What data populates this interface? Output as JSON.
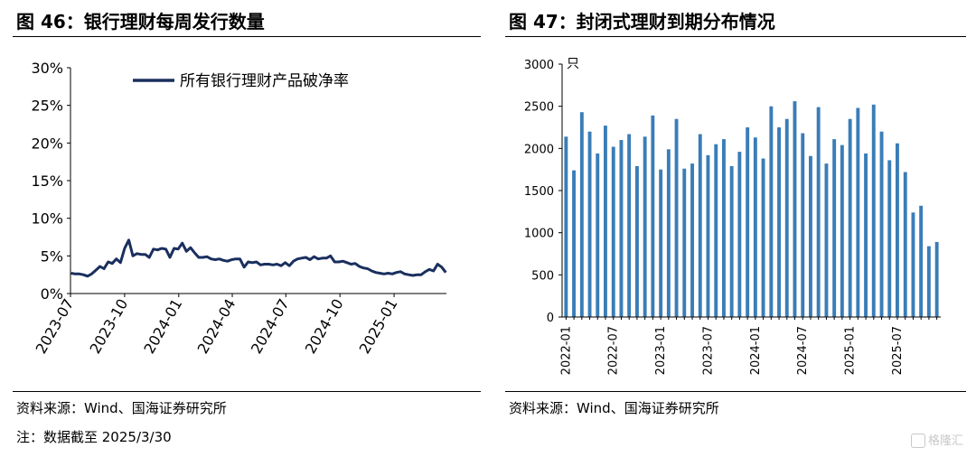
{
  "left_figure": {
    "title": "图 46：银行理财每周发行数量",
    "source": "资料来源：Wind、国海证券研究所",
    "note": "注：数据截至 2025/3/30"
  },
  "right_figure": {
    "title": "图 47：封闭式理财到期分布情况",
    "source": "资料来源：Wind、国海证券研究所"
  },
  "watermark": "格隆汇",
  "colors": {
    "line": "#1a2f5e",
    "bar": "#3a7db8",
    "axis": "#000000"
  },
  "chart_data": [
    {
      "type": "line",
      "ylim": [
        0,
        30
      ],
      "y_ticks": [
        "0%",
        "5%",
        "10%",
        "15%",
        "20%",
        "25%",
        "30%"
      ],
      "x_ticks": [
        "2023-07",
        "2023-10",
        "2024-01",
        "2024-04",
        "2024-07",
        "2024-10",
        "2025-01"
      ],
      "grid": false,
      "legend_position": "top",
      "series": [
        {
          "name": "所有银行理财产品破净率",
          "x": [
            "2023-07-02",
            "2023-07-09",
            "2023-07-16",
            "2023-07-23",
            "2023-07-30",
            "2023-08-06",
            "2023-08-13",
            "2023-08-20",
            "2023-08-27",
            "2023-09-03",
            "2023-09-10",
            "2023-09-17",
            "2023-09-24",
            "2023-10-01",
            "2023-10-08",
            "2023-10-15",
            "2023-10-22",
            "2023-10-29",
            "2023-11-05",
            "2023-11-12",
            "2023-11-19",
            "2023-11-26",
            "2023-12-03",
            "2023-12-10",
            "2023-12-17",
            "2023-12-24",
            "2023-12-31",
            "2024-01-07",
            "2024-01-14",
            "2024-01-21",
            "2024-01-28",
            "2024-02-04",
            "2024-02-11",
            "2024-02-18",
            "2024-02-25",
            "2024-03-03",
            "2024-03-10",
            "2024-03-17",
            "2024-03-24",
            "2024-03-31",
            "2024-04-07",
            "2024-04-14",
            "2024-04-21",
            "2024-04-28",
            "2024-05-05",
            "2024-05-12",
            "2024-05-19",
            "2024-05-26",
            "2024-06-02",
            "2024-06-09",
            "2024-06-16",
            "2024-06-23",
            "2024-06-30",
            "2024-07-07",
            "2024-07-14",
            "2024-07-21",
            "2024-07-28",
            "2024-08-04",
            "2024-08-11",
            "2024-08-18",
            "2024-08-25",
            "2024-09-01",
            "2024-09-08",
            "2024-09-15",
            "2024-09-22",
            "2024-09-29",
            "2024-10-06",
            "2024-10-13",
            "2024-10-20",
            "2024-10-27",
            "2024-11-03",
            "2024-11-10",
            "2024-11-17",
            "2024-11-24",
            "2024-12-01",
            "2024-12-08",
            "2024-12-15",
            "2024-12-22",
            "2024-12-29",
            "2025-01-05",
            "2025-01-12",
            "2025-01-19",
            "2025-01-26",
            "2025-02-02",
            "2025-02-09",
            "2025-02-16",
            "2025-02-23",
            "2025-03-02",
            "2025-03-09",
            "2025-03-16",
            "2025-03-23",
            "2025-03-30"
          ],
          "values": [
            2.7,
            2.6,
            2.6,
            2.5,
            2.3,
            2.6,
            3.1,
            3.6,
            3.3,
            4.2,
            4.0,
            4.6,
            4.1,
            6.0,
            7.1,
            5.0,
            5.3,
            5.2,
            5.2,
            4.8,
            5.9,
            5.8,
            6.0,
            5.9,
            4.8,
            6.0,
            5.9,
            6.7,
            5.6,
            6.1,
            5.4,
            4.8,
            4.8,
            4.9,
            4.6,
            4.5,
            4.6,
            4.4,
            4.3,
            4.5,
            4.6,
            4.6,
            3.5,
            4.2,
            4.1,
            4.2,
            3.8,
            3.9,
            3.9,
            3.8,
            3.9,
            3.7,
            4.1,
            3.7,
            4.3,
            4.6,
            4.7,
            4.8,
            4.5,
            4.9,
            4.6,
            4.7,
            4.7,
            5.0,
            4.2,
            4.2,
            4.3,
            4.1,
            3.9,
            4.0,
            3.6,
            3.4,
            3.3,
            3.0,
            2.8,
            2.7,
            2.6,
            2.7,
            2.6,
            2.8,
            2.9,
            2.6,
            2.5,
            2.4,
            2.5,
            2.5,
            2.9,
            3.2,
            3.0,
            3.9,
            3.5,
            2.8
          ]
        }
      ]
    },
    {
      "type": "bar",
      "ylim": [
        0,
        3000
      ],
      "y_ticks": [
        "0",
        "500",
        "1000",
        "1500",
        "2000",
        "2500",
        "3000"
      ],
      "y_unit": "只",
      "x_ticks": [
        "2022-01",
        "2022-07",
        "2023-01",
        "2023-07",
        "2024-01",
        "2024-07",
        "2025-01",
        "2025-07"
      ],
      "grid": false,
      "categories": [
        "2022-01",
        "2022-02",
        "2022-03",
        "2022-04",
        "2022-05",
        "2022-06",
        "2022-07",
        "2022-08",
        "2022-09",
        "2022-10",
        "2022-11",
        "2022-12",
        "2023-01",
        "2023-02",
        "2023-03",
        "2023-04",
        "2023-05",
        "2023-06",
        "2023-07",
        "2023-08",
        "2023-09",
        "2023-10",
        "2023-11",
        "2023-12",
        "2024-01",
        "2024-02",
        "2024-03",
        "2024-04",
        "2024-05",
        "2024-06",
        "2024-07",
        "2024-08",
        "2024-09",
        "2024-10",
        "2024-11",
        "2024-12",
        "2025-01",
        "2025-02",
        "2025-03",
        "2025-04",
        "2025-05",
        "2025-06",
        "2025-07",
        "2025-08",
        "2025-09",
        "2025-10",
        "2025-11",
        "2025-12"
      ],
      "values": [
        2140,
        1740,
        2430,
        2200,
        1940,
        2270,
        2020,
        2100,
        2170,
        1790,
        2140,
        2390,
        1750,
        1990,
        2350,
        1760,
        1820,
        2170,
        1920,
        2050,
        2110,
        1790,
        1960,
        2250,
        2130,
        1880,
        2500,
        2250,
        2350,
        2560,
        2180,
        1910,
        2490,
        1820,
        2110,
        2040,
        2350,
        2480,
        1940,
        2520,
        2200,
        1860,
        2060,
        1720,
        1240,
        1320,
        840,
        890
      ]
    }
  ]
}
